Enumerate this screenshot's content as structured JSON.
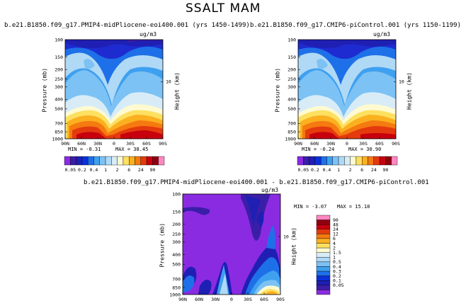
{
  "page": {
    "title": "SSALT MAM"
  },
  "colors": {
    "palette": [
      "#8a2be2",
      "#3b1ea8",
      "#1f1fb4",
      "#0a30d8",
      "#1e70e8",
      "#3fa0f0",
      "#7cc2f4",
      "#b0d9f6",
      "#d8ecf8",
      "#fffad0",
      "#fde060",
      "#fbb020",
      "#f57a10",
      "#e43a0e",
      "#c8000e",
      "#900010",
      "#ff86c2"
    ]
  },
  "chart_data": [
    {
      "type": "heatmap",
      "title": "b.e21.B1850.f09_g17.PMIP4-midPliocene-eoi400.001 (yrs 1450-1499)",
      "units": "ug/m3",
      "xlabel": "",
      "ylabel": "Pressure (mb)",
      "y2label": "Height (km)",
      "x_ticks": [
        "90N",
        "60N",
        "30N",
        "0",
        "30S",
        "60S",
        "90S"
      ],
      "y_ticks": [
        "100",
        "150",
        "200",
        "250",
        "300",
        "400",
        "500",
        "700",
        "850",
        "1000"
      ],
      "y2_ticks": [
        "10"
      ],
      "min_label": "MIN = -0.31",
      "max_label": "MAX = 38.45",
      "levels": [
        "0.05",
        "0.1",
        "0.2",
        "0.3",
        "0.4",
        "0.5",
        "1",
        "1.5",
        "2",
        "4",
        "6",
        "12",
        "24",
        "48",
        "90"
      ],
      "colorbar_labels": [
        "0.05",
        "0.2",
        "0.4",
        "1",
        "2",
        "6",
        "24",
        "90"
      ]
    },
    {
      "type": "heatmap",
      "title": "b.e21.B1850.f09_g17.CMIP6-piControl.001 (yrs 1150-1199)",
      "units": "ug/m3",
      "xlabel": "",
      "ylabel": "Pressure (mb)",
      "y2label": "Height (km)",
      "x_ticks": [
        "90N",
        "60N",
        "30N",
        "0",
        "30S",
        "60S",
        "90S"
      ],
      "y_ticks": [
        "100",
        "150",
        "200",
        "250",
        "300",
        "400",
        "500",
        "700",
        "850",
        "1000"
      ],
      "y2_ticks": [
        "10"
      ],
      "min_label": "MIN = -0.24",
      "max_label": "MAX = 30.90",
      "levels": [
        "0.05",
        "0.1",
        "0.2",
        "0.3",
        "0.4",
        "0.5",
        "1",
        "1.5",
        "2",
        "4",
        "6",
        "12",
        "24",
        "48",
        "90"
      ],
      "colorbar_labels": [
        "0.05",
        "0.2",
        "0.4",
        "1",
        "2",
        "6",
        "24",
        "90"
      ]
    },
    {
      "type": "heatmap",
      "title": "b.e21.B1850.f09_g17.PMIP4-midPliocene-eoi400.001 - b.e21.B1850.f09_g17.CMIP6-piControl.001",
      "units": "ug/m3",
      "xlabel": "",
      "ylabel": "Pressure (mb)",
      "y2label": "Height (km)",
      "x_ticks": [
        "90N",
        "60N",
        "30N",
        "0",
        "30S",
        "60S",
        "90S"
      ],
      "y_ticks": [
        "100",
        "150",
        "200",
        "250",
        "300",
        "400",
        "500",
        "700",
        "850",
        "1000"
      ],
      "y2_ticks": [
        "10"
      ],
      "min_label": "MIN = -3.07",
      "max_label": "MAX = 15.18",
      "colorbar_labels": [
        "90",
        "48",
        "24",
        "12",
        "6",
        "4",
        "2",
        "1.5",
        "1",
        "0.5",
        "0.4",
        "0.3",
        "0.2",
        "0.1",
        "0.05"
      ]
    }
  ]
}
